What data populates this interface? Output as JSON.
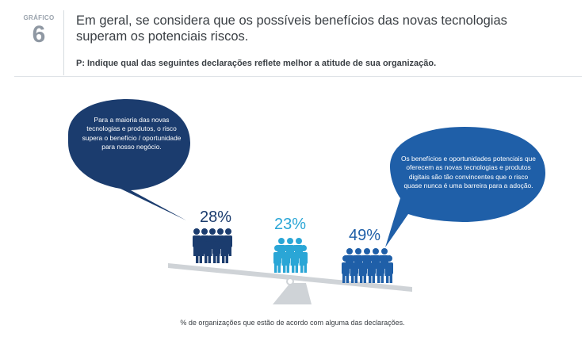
{
  "header": {
    "label": "GRÁFICO",
    "number": "6",
    "title": "Em geral, se considera que os possíveis benefícios das novas tecnologias superam os potenciais riscos.",
    "question": "P: Indique qual das seguintes declarações reflete melhor a atitude de sua organização."
  },
  "bubbles": {
    "left": "Para a maioria das novas tecnologias e produtos, o risco supera o benefício / oportunidade para nosso negócio.",
    "right": "Os benefícios e oportunidades potenciais que oferecem as novas tecnologias e produtos digitais são tão convincentes que o risco quase nunca é uma barreira para a adoção."
  },
  "groups": [
    {
      "percent": "28%",
      "value": 28,
      "color": "#1b3c6e"
    },
    {
      "percent": "23%",
      "value": 23,
      "color": "#2aa6d6"
    },
    {
      "percent": "49%",
      "value": 49,
      "color": "#1f5fa8"
    }
  ],
  "colors": {
    "dark_navy": "#1b3c6e",
    "light_blue": "#2aa6d6",
    "mid_blue": "#1f5fa8",
    "seesaw": "#cfd3d7"
  },
  "footnote": "% de organizações que estão de acordo com alguma das declarações."
}
